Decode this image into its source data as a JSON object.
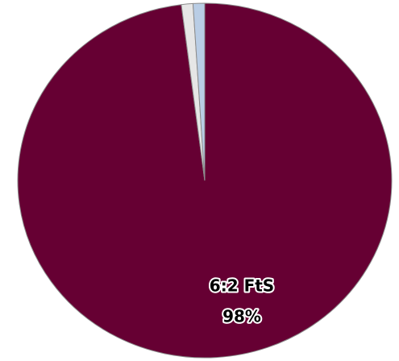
{
  "chart_data": {
    "type": "pie",
    "categories": [
      "6:2 FtS",
      null,
      null
    ],
    "values": [
      98,
      1,
      1
    ],
    "value_labels": [
      "98%",
      null,
      null
    ],
    "colors": [
      "#660033",
      "#e6e6e6",
      "#b9cde5"
    ]
  }
}
